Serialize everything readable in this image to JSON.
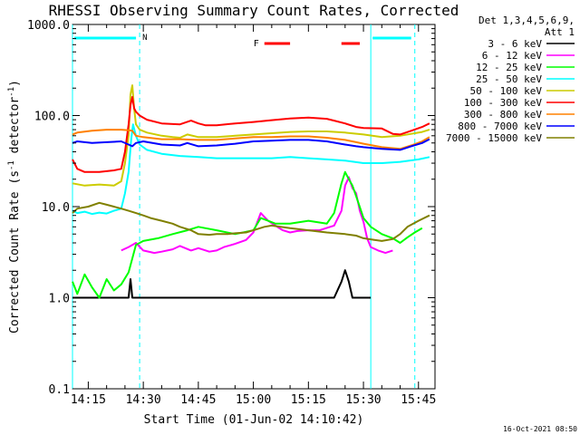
{
  "chart_data": {
    "type": "line",
    "title": "RHESSI Observing Summary Count Rates, Corrected",
    "xlabel": "Start Time (01-Jun-02 14:10:42)",
    "ylabel": "Corrected Count Rate (s⁻¹ detector⁻¹)",
    "ylabel_parts": {
      "base": "Corrected Count Rate (s",
      "sup1": "-1",
      "mid": " detector",
      "sup2": "-1",
      "end": ")"
    },
    "yscale": "log",
    "xlim_min": [
      10.7,
      49.5
    ],
    "ylim": [
      0.1,
      1000
    ],
    "x_ticks": [
      {
        "min": 15,
        "label": "14:15"
      },
      {
        "min": 30,
        "label": "14:30"
      },
      {
        "min": 45,
        "label": "14:45"
      },
      {
        "min": 60,
        "label": "15:00"
      },
      {
        "min": 75,
        "label": "15:15"
      },
      {
        "min": 90,
        "label": "15:30"
      },
      {
        "min": 105,
        "label": "15:45"
      }
    ],
    "y_ticks": [
      {
        "v": 0.1,
        "label": "0.1"
      },
      {
        "v": 1,
        "label": "1.0"
      },
      {
        "v": 10,
        "label": "10.0"
      },
      {
        "v": 100,
        "label": "100.0"
      },
      {
        "v": 1000,
        "label": "1000.0"
      }
    ],
    "legend_header": [
      "Det 1,3,4,5,6,9,",
      "Att 1"
    ],
    "footer_date": "16-Oct-2021 08:50",
    "flag_labels": {
      "night": "N",
      "flare": "F"
    },
    "series": [
      {
        "name": "3 - 6 keV",
        "color": "#000000",
        "x": [
          10.7,
          24,
          26,
          26.5,
          27,
          28,
          30,
          40,
          50,
          60,
          70,
          75,
          82,
          84,
          85,
          86,
          87,
          88,
          89,
          92
        ],
        "y": [
          1,
          1,
          1,
          1.6,
          1,
          1,
          1,
          1,
          1,
          1,
          1,
          1,
          1,
          1.5,
          2,
          1.5,
          1,
          1,
          1,
          1
        ]
      },
      {
        "name": "6 - 12 keV",
        "color": "#ff00ff",
        "x": [
          24,
          26,
          28,
          30,
          33,
          35,
          38,
          40,
          43,
          45,
          48,
          50,
          52,
          55,
          58,
          60,
          62,
          64,
          66,
          68,
          70,
          72,
          75,
          78,
          82,
          84,
          85,
          86,
          87,
          88,
          89,
          90,
          91,
          92,
          94,
          96,
          98
        ],
        "y": [
          3.3,
          3.6,
          4,
          3.3,
          3.1,
          3.2,
          3.4,
          3.7,
          3.3,
          3.5,
          3.2,
          3.3,
          3.6,
          3.9,
          4.3,
          5.2,
          8.5,
          7,
          6.2,
          5.5,
          5.2,
          5.4,
          5.5,
          5.5,
          6.2,
          9,
          17,
          21,
          16,
          14,
          9,
          6.8,
          4.5,
          3.6,
          3.3,
          3.1,
          3.3
        ]
      },
      {
        "name": "12 - 25 keV",
        "color": "#00ff00",
        "x": [
          10.7,
          12,
          14,
          16,
          18,
          20,
          22,
          24,
          26,
          28,
          30,
          34,
          38,
          42,
          45,
          50,
          55,
          60,
          62,
          64,
          66,
          70,
          75,
          80,
          82,
          84,
          85,
          86,
          87,
          88,
          90,
          92,
          95,
          98,
          100,
          102,
          104,
          106
        ],
        "y": [
          1.5,
          1.1,
          1.8,
          1.3,
          1,
          1.6,
          1.2,
          1.4,
          1.9,
          3.8,
          4.2,
          4.5,
          5,
          5.5,
          6,
          5.5,
          5,
          5.5,
          7.5,
          7,
          6.5,
          6.5,
          7,
          6.5,
          8.5,
          18,
          24,
          20,
          17,
          13,
          7.5,
          6,
          5,
          4.5,
          4,
          4.6,
          5.2,
          5.8
        ]
      },
      {
        "name": "25 - 50 keV",
        "color": "#00ffff",
        "x": [
          10.7,
          12,
          14,
          16,
          18,
          20,
          22,
          24,
          25,
          26,
          26.7,
          27.2,
          28,
          29,
          31,
          35,
          40,
          45,
          50,
          55,
          60,
          65,
          70,
          75,
          80,
          85,
          90,
          95,
          100,
          105,
          108
        ],
        "y": [
          9,
          8.5,
          8.8,
          8.3,
          8.6,
          8.4,
          9,
          9.5,
          14,
          24,
          55,
          80,
          60,
          48,
          42,
          38,
          36,
          35,
          34,
          34,
          34,
          34,
          35,
          34,
          33,
          32,
          30,
          30,
          31,
          33,
          35
        ]
      },
      {
        "name": "50 - 100 keV",
        "color": "#cccc00",
        "x": [
          10.7,
          14,
          18,
          22,
          24,
          25,
          26,
          26.5,
          27,
          27.5,
          28,
          29,
          31,
          35,
          38,
          40,
          42,
          45,
          50,
          55,
          60,
          65,
          70,
          75,
          80,
          85,
          90,
          95,
          100,
          103,
          106,
          108
        ],
        "y": [
          18,
          17,
          17.5,
          17,
          19,
          30,
          60,
          170,
          215,
          120,
          80,
          70,
          65,
          60,
          58,
          57,
          62,
          58,
          58,
          60,
          62,
          64,
          66,
          67,
          67,
          65,
          62,
          58,
          60,
          63,
          66,
          70
        ]
      },
      {
        "name": "100 - 300 keV",
        "color": "#ff0000",
        "x": [
          10.7,
          12,
          14,
          18,
          22,
          24,
          25,
          26,
          26.5,
          27,
          27.5,
          28,
          29,
          31,
          35,
          40,
          43,
          45,
          47,
          50,
          55,
          60,
          65,
          70,
          75,
          80,
          82,
          85,
          88,
          90,
          95,
          98,
          100,
          103,
          106,
          108
        ],
        "y": [
          33,
          26,
          24,
          24,
          25,
          26,
          40,
          80,
          130,
          160,
          120,
          110,
          100,
          90,
          82,
          80,
          88,
          82,
          78,
          78,
          82,
          85,
          89,
          93,
          95,
          92,
          88,
          82,
          75,
          73,
          72,
          63,
          62,
          68,
          75,
          82
        ]
      },
      {
        "name": "300 - 800 keV",
        "color": "#ff8000",
        "x": [
          10.7,
          12,
          16,
          20,
          24,
          26,
          27,
          28,
          30,
          35,
          40,
          45,
          50,
          55,
          60,
          65,
          70,
          75,
          80,
          85,
          88,
          90,
          95,
          100,
          103,
          106,
          108
        ],
        "y": [
          62,
          65,
          68,
          70,
          70,
          69,
          68,
          60,
          58,
          55,
          55,
          54,
          54,
          56,
          58,
          58,
          59,
          59,
          57,
          54,
          51,
          49,
          45,
          43,
          47,
          52,
          58
        ]
      },
      {
        "name": "800 - 7000 keV",
        "color": "#0000ff",
        "x": [
          10.7,
          12,
          16,
          20,
          24,
          26,
          27,
          28,
          30,
          35,
          40,
          42,
          45,
          50,
          55,
          60,
          65,
          70,
          75,
          80,
          85,
          88,
          90,
          95,
          100,
          103,
          106,
          108
        ],
        "y": [
          50,
          52,
          50,
          51,
          52,
          48,
          46,
          50,
          52,
          48,
          47,
          50,
          46,
          47,
          49,
          52,
          53,
          54,
          54,
          52,
          48,
          46,
          45,
          43,
          42,
          46,
          50,
          55
        ]
      },
      {
        "name": "7000 - 15000 keV",
        "color": "#808000",
        "x": [
          10.7,
          12,
          15,
          18,
          20,
          22,
          24,
          26,
          28,
          30,
          32,
          35,
          38,
          40,
          43,
          45,
          48,
          50,
          53,
          55,
          58,
          60,
          63,
          65,
          70,
          75,
          80,
          85,
          88,
          90,
          93,
          95,
          98,
          100,
          102,
          105,
          108
        ],
        "y": [
          8.5,
          9.5,
          10,
          11,
          10.5,
          10,
          9.5,
          9,
          8.5,
          8,
          7.5,
          7,
          6.5,
          6,
          5.5,
          5,
          4.9,
          5,
          5,
          5.1,
          5.2,
          5.5,
          6,
          6.2,
          5.8,
          5.5,
          5.2,
          5,
          4.8,
          4.5,
          4.3,
          4.2,
          4.4,
          5,
          6,
          7,
          8
        ]
      }
    ],
    "night_intervals": [
      [
        10.7,
        29
      ],
      [
        92,
        104
      ]
    ],
    "flare_intervals": [
      [
        63,
        70
      ],
      [
        84,
        89
      ]
    ],
    "vlines_solid": [
      10.7,
      92
    ],
    "vlines_dashed": [
      29,
      104
    ]
  }
}
